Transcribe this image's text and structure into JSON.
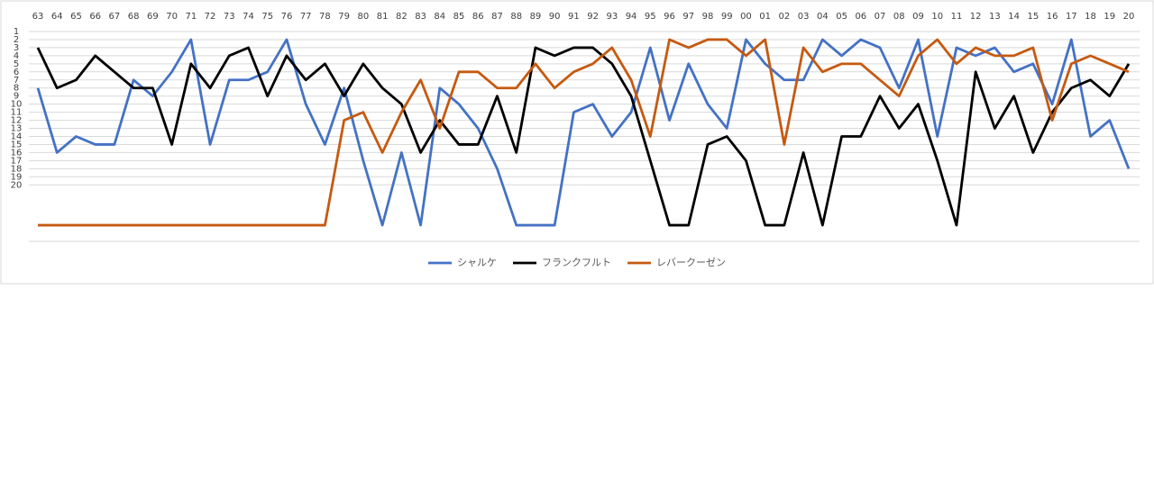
{
  "chart_data": {
    "type": "line",
    "categories": [
      "63",
      "64",
      "65",
      "66",
      "67",
      "68",
      "69",
      "70",
      "71",
      "72",
      "73",
      "74",
      "75",
      "76",
      "77",
      "78",
      "79",
      "80",
      "81",
      "82",
      "83",
      "84",
      "85",
      "86",
      "87",
      "88",
      "89",
      "90",
      "91",
      "92",
      "93",
      "94",
      "95",
      "96",
      "97",
      "98",
      "99",
      "00",
      "01",
      "02",
      "03",
      "04",
      "05",
      "06",
      "07",
      "08",
      "09",
      "10",
      "11",
      "12",
      "13",
      "14",
      "15",
      "16",
      "17",
      "18",
      "19",
      "20"
    ],
    "series": [
      {
        "name": "シャルケ",
        "color": "#4472c4",
        "values": [
          8,
          16,
          14,
          15,
          15,
          7,
          9,
          6,
          2,
          15,
          7,
          7,
          6,
          2,
          10,
          15,
          8,
          17,
          25,
          16,
          25,
          8,
          10,
          13,
          18,
          25,
          25,
          25,
          11,
          10,
          14,
          11,
          3,
          12,
          5,
          10,
          13,
          2,
          5,
          7,
          7,
          2,
          4,
          2,
          3,
          8,
          2,
          14,
          3,
          4,
          3,
          6,
          5,
          10,
          2,
          14,
          12,
          18
        ]
      },
      {
        "name": "フランクフルト",
        "color": "#000000",
        "values": [
          3,
          8,
          7,
          4,
          6,
          8,
          8,
          15,
          5,
          8,
          4,
          3,
          9,
          4,
          7,
          5,
          9,
          5,
          8,
          10,
          16,
          12,
          15,
          15,
          9,
          16,
          3,
          4,
          3,
          3,
          5,
          9,
          17,
          25,
          25,
          15,
          14,
          17,
          25,
          25,
          16,
          25,
          14,
          14,
          9,
          13,
          10,
          17,
          25,
          6,
          13,
          9,
          16,
          11,
          8,
          7,
          9,
          5
        ]
      },
      {
        "name": "レバークーゼン",
        "color": "#c55a11",
        "values": [
          25,
          25,
          25,
          25,
          25,
          25,
          25,
          25,
          25,
          25,
          25,
          25,
          25,
          25,
          25,
          25,
          12,
          11,
          16,
          11,
          7,
          13,
          6,
          6,
          8,
          8,
          5,
          8,
          6,
          5,
          3,
          7,
          14,
          2,
          3,
          2,
          2,
          4,
          2,
          15,
          3,
          6,
          5,
          5,
          7,
          9,
          4,
          2,
          5,
          3,
          4,
          4,
          3,
          12,
          5,
          4,
          5,
          6
        ]
      }
    ],
    "ylim": [
      1,
      27
    ],
    "y_inverted": true,
    "yticks": [
      1,
      2,
      3,
      4,
      5,
      6,
      7,
      8,
      9,
      10,
      11,
      12,
      13,
      14,
      15,
      16,
      17,
      18,
      19,
      20
    ],
    "grid": true,
    "legend": "bottom"
  }
}
